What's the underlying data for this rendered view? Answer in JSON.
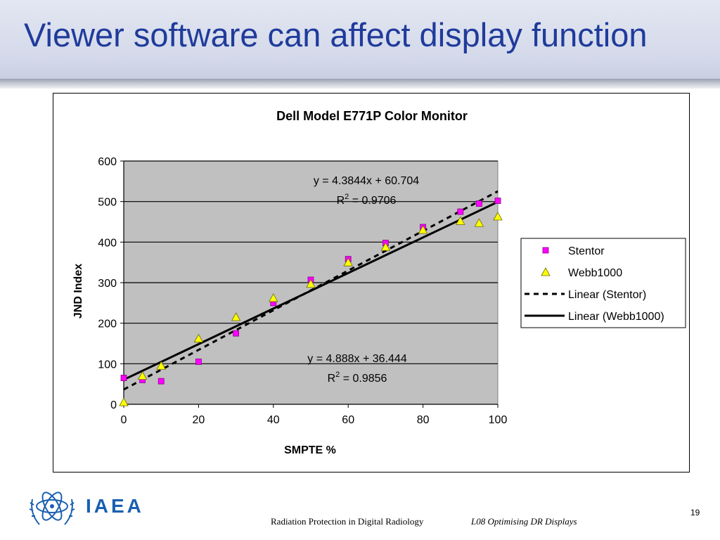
{
  "slide": {
    "title": "Viewer software can affect display function",
    "footer_left": "Radiation Protection in Digital Radiology",
    "footer_right": "L08 Optimising DR Displays",
    "page_number": "19",
    "logo_text": "IAEA"
  },
  "colors": {
    "title": "#1f3b9b",
    "stentor": "#ff00ff",
    "webb": "#ffff00",
    "plot_bg": "#c0c0c0",
    "logo": "#1a5fb0"
  },
  "chart_data": {
    "type": "scatter",
    "title": "Dell Model E771P Color Monitor",
    "xlabel": "SMPTE %",
    "ylabel": "JND Index",
    "xlim": [
      0,
      100
    ],
    "ylim": [
      0,
      600
    ],
    "xticks": [
      "0",
      "20",
      "40",
      "60",
      "80",
      "100"
    ],
    "yticks": [
      "0",
      "100",
      "200",
      "300",
      "400",
      "500",
      "600"
    ],
    "grid": "horizontal",
    "legend_position": "right",
    "series": [
      {
        "name": "Stentor",
        "marker": "square",
        "color": "#ff00ff",
        "x": [
          0,
          5,
          10,
          20,
          30,
          40,
          50,
          60,
          70,
          80,
          90,
          95,
          100
        ],
        "y": [
          65,
          60,
          57,
          105,
          175,
          250,
          307,
          358,
          398,
          437,
          475,
          495,
          502
        ]
      },
      {
        "name": "Webb1000",
        "marker": "triangle",
        "color": "#ffff00",
        "x": [
          0,
          5,
          10,
          20,
          30,
          40,
          50,
          60,
          70,
          80,
          90,
          95,
          100
        ],
        "y": [
          5,
          70,
          95,
          162,
          215,
          262,
          297,
          350,
          388,
          430,
          452,
          447,
          463
        ]
      }
    ],
    "trendlines": [
      {
        "name": "Linear (Stentor)",
        "style": "dashed",
        "slope": 4.888,
        "intercept": 36.444,
        "equation": "y = 4.888x + 36.444",
        "r2_label": "R",
        "r2_sup": "2",
        "r2_value": " = 0.9856"
      },
      {
        "name": "Linear (Webb1000)",
        "style": "solid",
        "slope": 4.3844,
        "intercept": 60.704,
        "equation": "y = 4.3844x + 60.704",
        "r2_label": "R",
        "r2_sup": "2",
        "r2_value": " = 0.9706"
      }
    ],
    "legend": [
      "Stentor",
      "Webb1000",
      "Linear (Stentor)",
      "Linear (Webb1000)"
    ]
  }
}
